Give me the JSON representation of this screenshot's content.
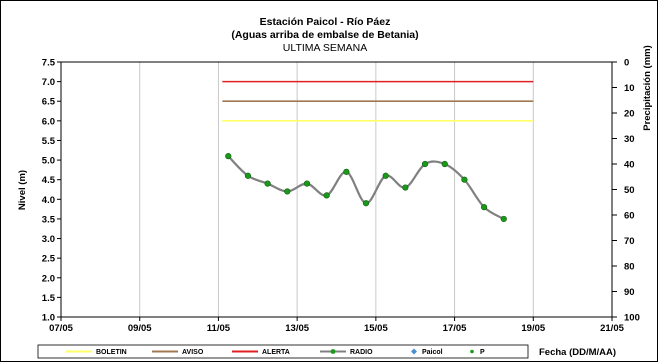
{
  "chart_data": {
    "type": "line",
    "title": "Estación Paicol  - Río Páez",
    "subtitle": "(Aguas arriba de embalse de Betania)",
    "subtitle2": "ULTIMA SEMANA",
    "ylabel": "Nivel (m)",
    "y2label": "Precipitación (mm)",
    "xlabel": "Fecha (DD/M/AA)",
    "ylim": [
      1.0,
      7.5
    ],
    "y2lim": [
      0,
      100
    ],
    "xlim": [
      "07/05",
      "21/05"
    ],
    "yticks": [
      "1.0",
      "1.5",
      "2.0",
      "2.5",
      "3.0",
      "3.5",
      "4.0",
      "4.5",
      "5.0",
      "5.5",
      "6.0",
      "6.5",
      "7.0",
      "7.5"
    ],
    "y2ticks": [
      "0",
      "10",
      "20",
      "30",
      "40",
      "50",
      "60",
      "70",
      "80",
      "90",
      "100"
    ],
    "xticks": [
      "07/05",
      "09/05",
      "11/05",
      "13/05",
      "15/05",
      "17/05",
      "19/05",
      "21/05"
    ],
    "grid": true,
    "legend_position": "bottom",
    "thresholds": [
      {
        "name": "BOLETIN",
        "value": 6.0,
        "x_start": 11.1,
        "x_end": 19.0,
        "color": "#ffff66"
      },
      {
        "name": "AVISO",
        "value": 6.5,
        "x_start": 11.1,
        "x_end": 19.0,
        "color": "#a07850"
      },
      {
        "name": "ALERTA",
        "value": 7.0,
        "x_start": 11.1,
        "x_end": 19.0,
        "color": "#e02020"
      }
    ],
    "series": [
      {
        "name": "RADIO",
        "color": "#808080",
        "marker_color": "#1a9a1a",
        "x": [
          11.25,
          11.75,
          12.25,
          12.75,
          13.25,
          13.75,
          14.25,
          14.75,
          15.25,
          15.75,
          16.25,
          16.75,
          17.25,
          17.75,
          18.25
        ],
        "y": [
          5.1,
          4.6,
          4.4,
          4.2,
          4.4,
          4.1,
          4.7,
          3.9,
          4.6,
          4.3,
          4.9,
          4.9,
          4.5,
          3.8,
          3.5
        ]
      }
    ],
    "legend": [
      {
        "name": "BOLETIN",
        "kind": "line",
        "color": "#ffff66"
      },
      {
        "name": "AVISO",
        "kind": "line",
        "color": "#a07850"
      },
      {
        "name": "ALERTA",
        "kind": "line",
        "color": "#e02020"
      },
      {
        "name": "RADIO",
        "kind": "line-marker",
        "color": "#808080",
        "marker_color": "#1a9a1a"
      },
      {
        "name": "Paicol",
        "kind": "diamond",
        "color": "#4a8fd0"
      },
      {
        "name": "P",
        "kind": "dot",
        "color": "#1a9a1a"
      }
    ]
  }
}
